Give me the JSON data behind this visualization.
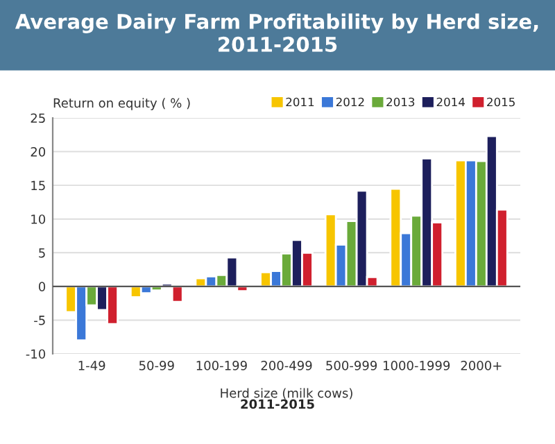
{
  "chart_data": {
    "type": "bar",
    "title": "Average Dairy Farm Profitability by Herd size, 2011-2015",
    "ylabel": "Return on equity ( % )",
    "xlabel": "Herd size (milk cows)",
    "annotations": [
      "2011-2015"
    ],
    "categories": [
      "1-49",
      "50-99",
      "100-199",
      "200-499",
      "500-999",
      "1000-1999",
      "2000+"
    ],
    "series": [
      {
        "name": "2011",
        "color": "#f7c500",
        "values": [
          -3.8,
          -1.6,
          1.2,
          2.1,
          10.7,
          14.5,
          18.7
        ]
      },
      {
        "name": "2012",
        "color": "#3b78d8",
        "values": [
          -8.0,
          -1.0,
          1.5,
          2.3,
          6.2,
          7.9,
          18.7
        ]
      },
      {
        "name": "2013",
        "color": "#6aaa3a",
        "values": [
          -2.8,
          -0.6,
          1.7,
          4.9,
          9.7,
          10.5,
          18.6
        ]
      },
      {
        "name": "2014",
        "color": "#1d1f5c",
        "values": [
          -3.5,
          0.4,
          4.3,
          6.9,
          14.2,
          19.0,
          22.3
        ]
      },
      {
        "name": "2015",
        "color": "#d0202e",
        "values": [
          -5.6,
          -2.3,
          -0.7,
          5.0,
          1.4,
          9.5,
          11.4
        ]
      }
    ],
    "ylim": [
      -10,
      25
    ],
    "yticks": [
      -10,
      -5,
      0,
      5,
      10,
      15,
      20,
      25
    ],
    "grid": "y",
    "legend": "top right"
  }
}
